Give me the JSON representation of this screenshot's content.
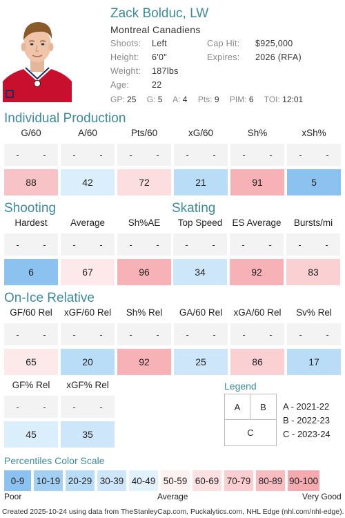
{
  "player": {
    "name": "Zack Bolduc, LW",
    "team": "Montreal Canadiens",
    "shoots_label": "Shoots:",
    "shoots": "Left",
    "height_label": "Height:",
    "height": "6'0\"",
    "weight_label": "Weight:",
    "weight": "187lbs",
    "age_label": "Age:",
    "age": "22",
    "caphit_label": "Cap Hit:",
    "caphit": "$925,000",
    "expires_label": "Expires:",
    "expires": "2026 (RFA)",
    "gp_label": "GP:",
    "gp": "25",
    "g_label": "G:",
    "g": "5",
    "a_label": "A:",
    "a": "4",
    "pts_label": "Pts:",
    "pts": "9",
    "pim_label": "PIM:",
    "pim": "6",
    "toi_label": "TOI:",
    "toi": "12:01"
  },
  "sections": {
    "individual": "Individual Production",
    "shooting": "Shooting",
    "skating": "Skating",
    "onice": "On-Ice Relative"
  },
  "dash": "-",
  "individual_metrics": [
    {
      "label": "G/60",
      "value": "88",
      "color": "#f8c3c6"
    },
    {
      "label": "A/60",
      "value": "42",
      "color": "#dbeefc"
    },
    {
      "label": "Pts/60",
      "value": "72",
      "color": "#fcdde0"
    },
    {
      "label": "xG/60",
      "value": "21",
      "color": "#b9dcf7"
    },
    {
      "label": "Sh%",
      "value": "91",
      "color": "#f6b2b6"
    },
    {
      "label": "xSh%",
      "value": "5",
      "color": "#8cc2ef"
    }
  ],
  "shooting_metrics": [
    {
      "label": "Hardest",
      "value": "6",
      "color": "#8cc2ef"
    },
    {
      "label": "Average",
      "value": "67",
      "color": "#fde9ea"
    },
    {
      "label": "Sh%AE",
      "value": "96",
      "color": "#f6b2b6"
    }
  ],
  "skating_metrics": [
    {
      "label": "Top Speed",
      "value": "34",
      "color": "#cde6f9"
    },
    {
      "label": "ES Average",
      "value": "92",
      "color": "#f6b2b6"
    },
    {
      "label": "Bursts/mi",
      "value": "83",
      "color": "#fad0d3"
    }
  ],
  "onice_metrics": [
    {
      "label": "GF/60 Rel",
      "value": "65",
      "color": "#fde9ea"
    },
    {
      "label": "xGF/60 Rel",
      "value": "20",
      "color": "#b9dcf7"
    },
    {
      "label": "Sh% Rel",
      "value": "92",
      "color": "#f6b2b6"
    },
    {
      "label": "GA/60 Rel",
      "value": "25",
      "color": "#cde6f9"
    },
    {
      "label": "xGA/60 Rel",
      "value": "86",
      "color": "#fad0d3"
    },
    {
      "label": "Sv% Rel",
      "value": "17",
      "color": "#b9dcf7"
    }
  ],
  "onice_metrics_2": [
    {
      "label": "GF% Rel",
      "value": "45",
      "color": "#dbeefc"
    },
    {
      "label": "xGF% Rel",
      "value": "35",
      "color": "#cde6f9"
    }
  ],
  "legend": {
    "title": "Legend",
    "a": "A",
    "b": "B",
    "c": "C",
    "a_desc": "A - 2021-22",
    "b_desc": "B - 2022-23",
    "c_desc": "C - 2023-24"
  },
  "scale": {
    "title": "Percentiles Color Scale",
    "cells": [
      {
        "label": "0-9",
        "color": "#8cc2ef"
      },
      {
        "label": "10-19",
        "color": "#a2cff2"
      },
      {
        "label": "20-29",
        "color": "#b9dcf7"
      },
      {
        "label": "30-39",
        "color": "#cde6f9"
      },
      {
        "label": "40-49",
        "color": "#e3f1fc"
      },
      {
        "label": "50-59",
        "color": "#fef1f2"
      },
      {
        "label": "60-69",
        "color": "#fde0e2"
      },
      {
        "label": "70-79",
        "color": "#fbcfd2"
      },
      {
        "label": "80-89",
        "color": "#f8bdc1"
      },
      {
        "label": "90-100",
        "color": "#f5aab0"
      }
    ],
    "poor": "Poor",
    "average": "Average",
    "very_good": "Very Good"
  },
  "footer": "Created 2025-10-24 using data from TheStanleyCap.com, Puckalytics.com, NHL Edge (nhl.com/nhl-edge)."
}
